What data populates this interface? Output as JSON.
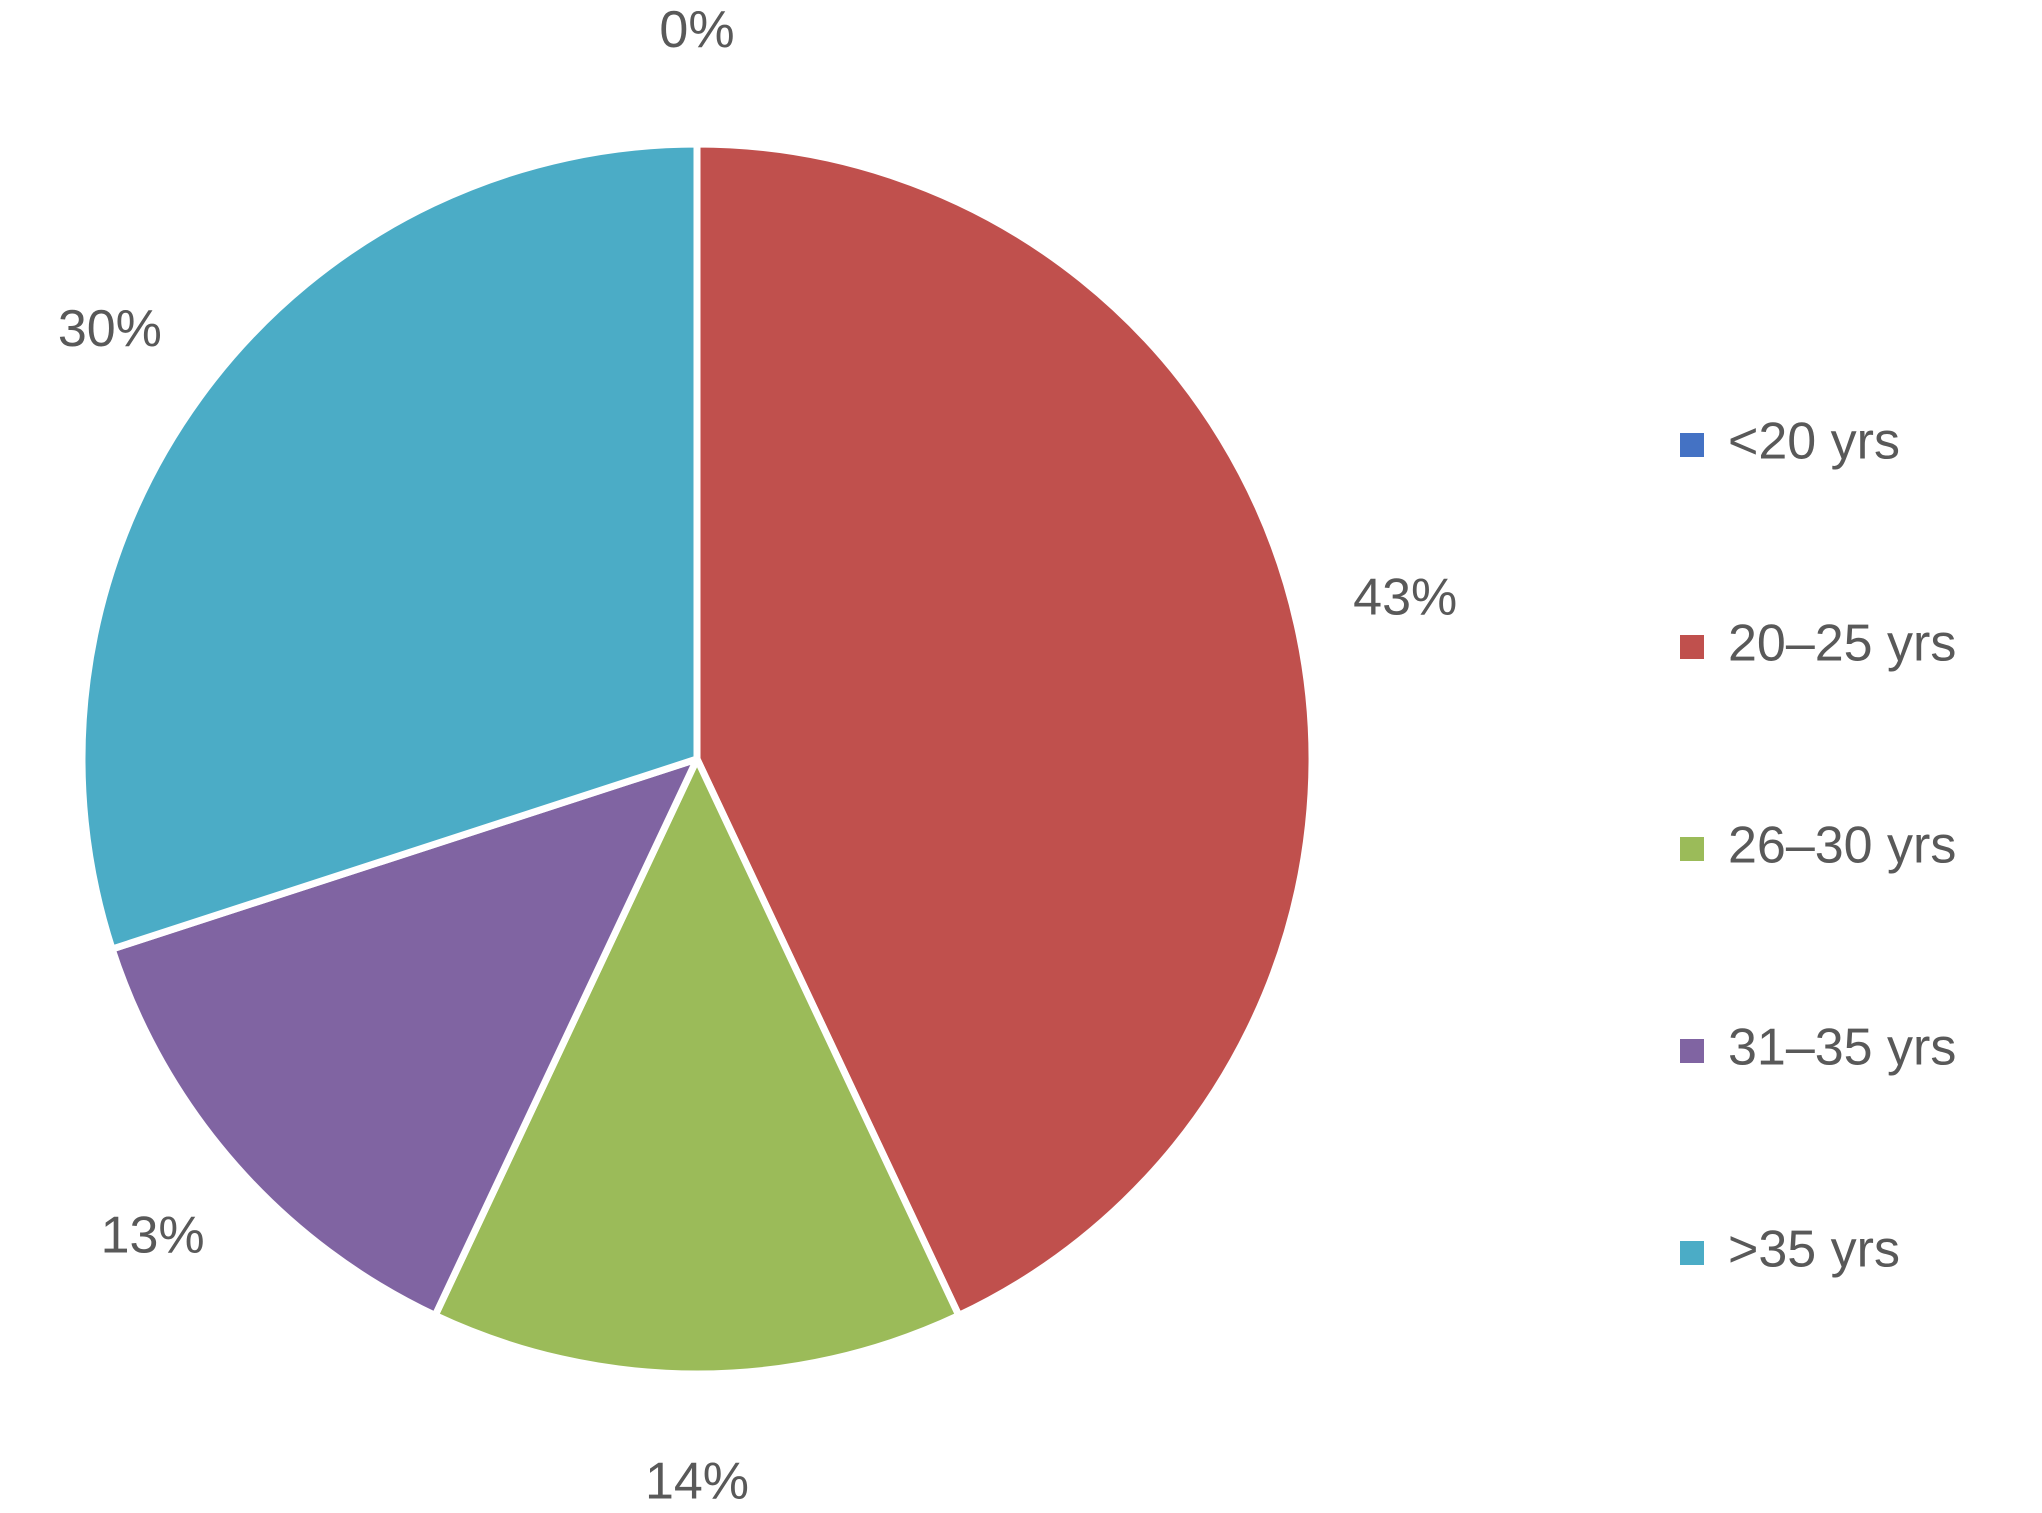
{
  "chart_data": {
    "type": "pie",
    "categories": [
      "<20 yrs",
      "20–25 yrs",
      "26–30 yrs",
      "31–35 yrs",
      ">35 yrs"
    ],
    "values": [
      0,
      43,
      14,
      13,
      30
    ],
    "value_labels": [
      "0%",
      "43%",
      "14%",
      "13%",
      "30%"
    ],
    "colors": [
      "#4472c4",
      "#c0504d",
      "#9bbb59",
      "#8064a2",
      "#4bacc6"
    ],
    "legend": "right"
  }
}
